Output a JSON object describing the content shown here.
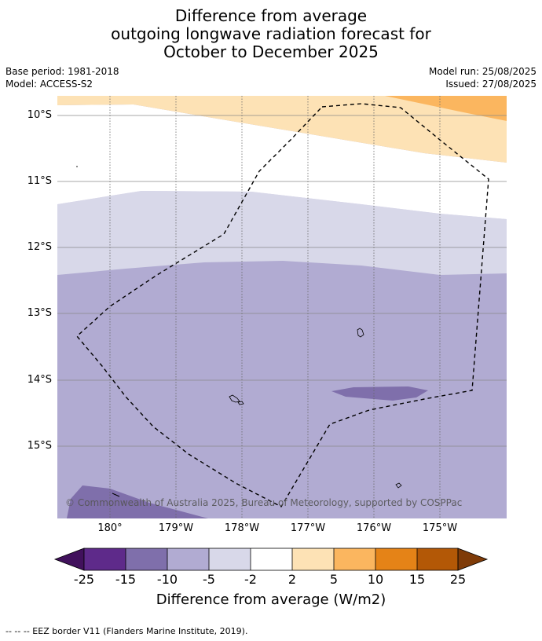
{
  "title": {
    "line1": "Difference from average",
    "line2": "outgoing longwave radiation forecast for",
    "line3": "October to December 2025"
  },
  "meta": {
    "base_period": "Base period: 1981-2018",
    "model": "Model: ACCESS-S2",
    "model_run": "Model run: 25/08/2025",
    "issued": "Issued: 27/08/2025"
  },
  "map": {
    "lat_labels": [
      "10°S",
      "11°S",
      "12°S",
      "13°S",
      "14°S",
      "15°S"
    ],
    "lon_labels": [
      "180°",
      "179°W",
      "178°W",
      "177°W",
      "176°W",
      "175°W"
    ],
    "copyright": "© Commonwealth of Australia 2025, Bureau of Meteorology, supported by COSPPac",
    "colors": {
      "light_orange": "#fde2b5",
      "orange": "#fbb65f",
      "lightest_purple": "#d8d8e9",
      "light_purple": "#b1abd2",
      "mid_purple": "#7f6fab"
    }
  },
  "colorbar": {
    "labels": [
      "-25",
      "-15",
      "-10",
      "-5",
      "-2",
      "2",
      "5",
      "10",
      "15",
      "25"
    ],
    "colors": [
      "#41115c",
      "#5e2a8a",
      "#7f6fab",
      "#b1abd2",
      "#d8d8e9",
      "#ffffff",
      "#fde2b5",
      "#fbb65f",
      "#e58317",
      "#b35806",
      "#7f3b08"
    ],
    "title": "Difference from average (W/m2)"
  },
  "footnote": "--  --  -- EEZ border V11 (Flanders Marine Institute, 2019)."
}
